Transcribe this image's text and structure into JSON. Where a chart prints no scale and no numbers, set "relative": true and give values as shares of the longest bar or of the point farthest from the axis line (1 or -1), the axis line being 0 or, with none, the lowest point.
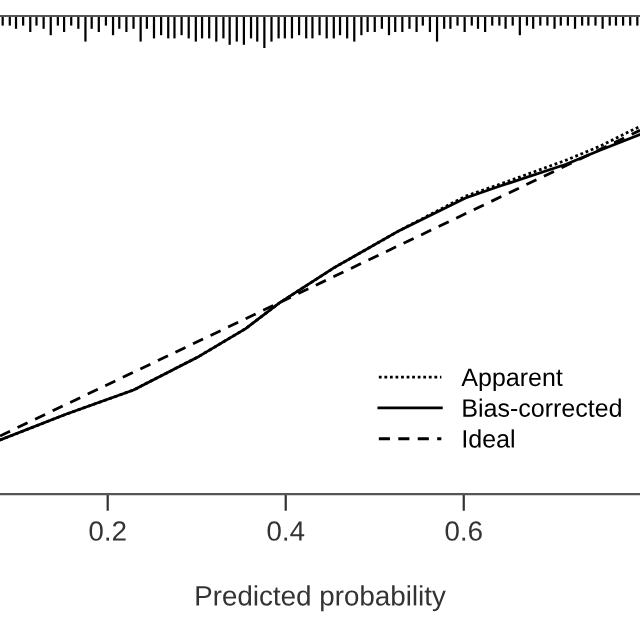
{
  "chart_data": [
    {
      "type": "line",
      "relative": true,
      "xlabel": "Predicted probability",
      "xlim": [
        0.079,
        0.798
      ],
      "xticks": [
        0.2,
        0.4,
        0.6
      ],
      "tick_labels": "x",
      "legend": "bottom right",
      "marker": "none",
      "series": [
        {
          "name": "Apparent",
          "color": "#000000",
          "line_style": "dotted",
          "x": [
            0.079,
            0.153,
            0.229,
            0.303,
            0.355,
            0.393,
            0.454,
            0.528,
            0.602,
            0.64,
            0.715,
            0.753,
            0.798
          ],
          "values": [
            0.147,
            0.217,
            0.283,
            0.375,
            0.45,
            0.52,
            0.615,
            0.717,
            0.81,
            0.842,
            0.908,
            0.946,
            1
          ]
        },
        {
          "name": "Bias-corrected",
          "color": "#000000",
          "line_style": "solid",
          "x": [
            0.079,
            0.153,
            0.229,
            0.303,
            0.355,
            0.393,
            0.454,
            0.528,
            0.602,
            0.64,
            0.715,
            0.753,
            0.798
          ],
          "values": [
            0.147,
            0.217,
            0.283,
            0.375,
            0.45,
            0.52,
            0.615,
            0.717,
            0.805,
            0.837,
            0.897,
            0.935,
            0.978
          ]
        },
        {
          "name": "Ideal",
          "color": "#000000",
          "line_style": "dashed",
          "x": [
            0.079,
            0.798
          ],
          "values": [
            0.158,
            0.989
          ]
        }
      ]
    },
    {
      "type": "bar",
      "relative": true,
      "xlim": [
        0.079,
        0.798
      ],
      "tick_labels": false,
      "series": [
        {
          "color": "#000000",
          "x": [
            0.082,
            0.09,
            0.097,
            0.105,
            0.113,
            0.12,
            0.128,
            0.136,
            0.144,
            0.151,
            0.159,
            0.167,
            0.175,
            0.182,
            0.19,
            0.198,
            0.206,
            0.213,
            0.221,
            0.229,
            0.237,
            0.244,
            0.252,
            0.26,
            0.268,
            0.275,
            0.283,
            0.291,
            0.299,
            0.306,
            0.314,
            0.322,
            0.33,
            0.337,
            0.345,
            0.353,
            0.361,
            0.368,
            0.376,
            0.384,
            0.392,
            0.399,
            0.407,
            0.415,
            0.423,
            0.43,
            0.438,
            0.446,
            0.454,
            0.461,
            0.469,
            0.477,
            0.485,
            0.492,
            0.5,
            0.508,
            0.516,
            0.523,
            0.531,
            0.539,
            0.547,
            0.554,
            0.562,
            0.57,
            0.578,
            0.585,
            0.593,
            0.601,
            0.609,
            0.616,
            0.624,
            0.632,
            0.64,
            0.647,
            0.655,
            0.663,
            0.671,
            0.678,
            0.686,
            0.694,
            0.702,
            0.709,
            0.717,
            0.725,
            0.733,
            0.74,
            0.748,
            0.756,
            0.764,
            0.771,
            0.779,
            0.787,
            0.795
          ],
          "values": [
            -0.3,
            -0.3,
            -0.4,
            -0.3,
            -0.5,
            -0.3,
            -0.4,
            -0.6,
            -0.3,
            -0.5,
            -0.3,
            -0.4,
            -0.8,
            -0.4,
            -0.5,
            -0.3,
            -0.6,
            -0.4,
            -0.5,
            -0.4,
            -0.8,
            -0.4,
            -0.7,
            -0.6,
            -0.7,
            -0.7,
            -0.6,
            -0.7,
            -0.8,
            -0.7,
            -0.7,
            -0.8,
            -0.7,
            -0.9,
            -0.8,
            -0.9,
            -0.7,
            -0.8,
            -1,
            -0.8,
            -0.7,
            -0.7,
            -0.7,
            -0.6,
            -0.7,
            -0.7,
            -0.6,
            -0.7,
            -0.7,
            -0.6,
            -0.7,
            -0.8,
            -0.6,
            -0.5,
            -0.5,
            -0.4,
            -0.6,
            -0.5,
            -0.5,
            -0.4,
            -0.5,
            -0.3,
            -0.5,
            -0.8,
            -0.4,
            -0.4,
            -0.3,
            -0.5,
            -0.3,
            -0.4,
            -0.5,
            -0.3,
            -0.3,
            -0.4,
            -0.3,
            -0.6,
            -0.3,
            -0.4,
            -0.3,
            -0.3,
            -0.4,
            -0.3,
            -0.3,
            -0.4,
            -0.3,
            -0.3,
            -0.3,
            -0.4,
            -0.3,
            -0.3,
            -0.3,
            -0.3,
            -0.3
          ]
        }
      ]
    }
  ]
}
